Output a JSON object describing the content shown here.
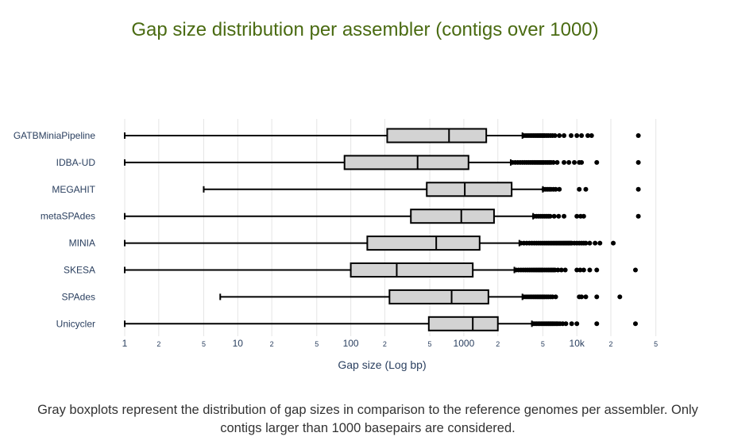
{
  "title": "Gap size distribution per assembler (contigs over 1000)",
  "caption": "Gray boxplots represent the distribution of gap sizes in comparison to the reference genomes per assembler. Only contigs larger than 1000 basepairs are considered.",
  "colors": {
    "title": "#4a6b12",
    "box_fill": "#d3d3d3",
    "box_stroke": "#000000",
    "axis_text": "#2a3f5f",
    "grid": "#e5e5e5"
  },
  "chart_data": {
    "type": "boxplot",
    "orientation": "horizontal",
    "title": "Gap size distribution per assembler (contigs over 1000)",
    "xlabel": "Gap size (Log bp)",
    "ylabel": "",
    "xscale": "log",
    "xlim": [
      0.95,
      60000
    ],
    "grid": true,
    "x_ticks": [
      {
        "value": 1,
        "label": "1",
        "major": true
      },
      {
        "value": 2,
        "label": "2",
        "major": false
      },
      {
        "value": 5,
        "label": "5",
        "major": false
      },
      {
        "value": 10,
        "label": "10",
        "major": true
      },
      {
        "value": 20,
        "label": "2",
        "major": false
      },
      {
        "value": 50,
        "label": "5",
        "major": false
      },
      {
        "value": 100,
        "label": "100",
        "major": true
      },
      {
        "value": 200,
        "label": "2",
        "major": false
      },
      {
        "value": 500,
        "label": "5",
        "major": false
      },
      {
        "value": 1000,
        "label": "1000",
        "major": true
      },
      {
        "value": 2000,
        "label": "2",
        "major": false
      },
      {
        "value": 5000,
        "label": "5",
        "major": false
      },
      {
        "value": 10000,
        "label": "10k",
        "major": true
      },
      {
        "value": 20000,
        "label": "2",
        "major": false
      },
      {
        "value": 50000,
        "label": "5",
        "major": false
      }
    ],
    "series": [
      {
        "name": "GATBMiniaPipeline",
        "whisker_low": 1,
        "q1": 210,
        "median": 740,
        "q3": 1580,
        "whisker_high": 3300,
        "outliers": [
          3400,
          3550,
          3700,
          3850,
          4000,
          4150,
          4300,
          4450,
          4600,
          4750,
          4900,
          5050,
          5200,
          5400,
          5600,
          5850,
          6100,
          6400,
          7000,
          7700,
          8900,
          10000,
          11000,
          12500,
          13500,
          35000
        ]
      },
      {
        "name": "IDBA-UD",
        "whisker_low": 1,
        "q1": 88,
        "median": 390,
        "q3": 1100,
        "whisker_high": 2600,
        "outliers": [
          2700,
          2850,
          3000,
          3150,
          3300,
          3450,
          3600,
          3750,
          3900,
          4050,
          4200,
          4350,
          4500,
          4650,
          4800,
          4950,
          5100,
          5300,
          5500,
          5700,
          5900,
          6200,
          6700,
          7700,
          8500,
          9500,
          10500,
          11000,
          15000,
          35000
        ]
      },
      {
        "name": "MEGAHIT",
        "whisker_low": 5,
        "q1": 470,
        "median": 1020,
        "q3": 2650,
        "whisker_high": 5000,
        "outliers": [
          5100,
          5300,
          5500,
          5700,
          5900,
          6200,
          6500,
          7000,
          10500,
          12000,
          35000
        ]
      },
      {
        "name": "metaSPAdes",
        "whisker_low": 1,
        "q1": 340,
        "median": 950,
        "q3": 1850,
        "whisker_high": 4100,
        "outliers": [
          4200,
          4400,
          4600,
          4800,
          5000,
          5200,
          5400,
          5600,
          5800,
          6300,
          6900,
          7700,
          10000,
          10800,
          11500,
          35000
        ]
      },
      {
        "name": "MINIA",
        "whisker_low": 1,
        "q1": 140,
        "median": 570,
        "q3": 1380,
        "whisker_high": 3100,
        "outliers": [
          3200,
          3400,
          3600,
          3800,
          4000,
          4200,
          4400,
          4600,
          4800,
          5000,
          5200,
          5400,
          5600,
          5800,
          6000,
          6200,
          6400,
          6600,
          6800,
          7000,
          7200,
          7400,
          7600,
          7800,
          8000,
          8200,
          8400,
          8600,
          8800,
          9000,
          9500,
          10000,
          10500,
          11000,
          11500,
          12000,
          13000,
          14500,
          16000,
          21000
        ]
      },
      {
        "name": "SKESA",
        "whisker_low": 1,
        "q1": 100,
        "median": 255,
        "q3": 1200,
        "whisker_high": 2800,
        "outliers": [
          2900,
          3050,
          3200,
          3350,
          3500,
          3650,
          3800,
          3950,
          4100,
          4250,
          4400,
          4550,
          4700,
          4850,
          5000,
          5200,
          5400,
          5600,
          5800,
          6000,
          6200,
          6400,
          6800,
          7300,
          7900,
          10000,
          10700,
          11500,
          13000,
          15000,
          33000
        ]
      },
      {
        "name": "SPAdes",
        "whisker_low": 7,
        "q1": 220,
        "median": 780,
        "q3": 1650,
        "whisker_high": 3300,
        "outliers": [
          3400,
          3550,
          3700,
          3850,
          4000,
          4150,
          4300,
          4450,
          4600,
          4750,
          4900,
          5050,
          5200,
          5400,
          5600,
          5850,
          6100,
          6500,
          10500,
          11000,
          12000,
          15000,
          24000
        ]
      },
      {
        "name": "Unicycler",
        "whisker_low": 1,
        "q1": 490,
        "median": 1200,
        "q3": 2000,
        "whisker_high": 4000,
        "outliers": [
          4100,
          4250,
          4400,
          4550,
          4700,
          4850,
          5000,
          5150,
          5300,
          5450,
          5600,
          5750,
          5900,
          6050,
          6200,
          6400,
          6600,
          6800,
          7100,
          7500,
          8000,
          9000,
          10000,
          15000,
          33000
        ]
      }
    ]
  }
}
